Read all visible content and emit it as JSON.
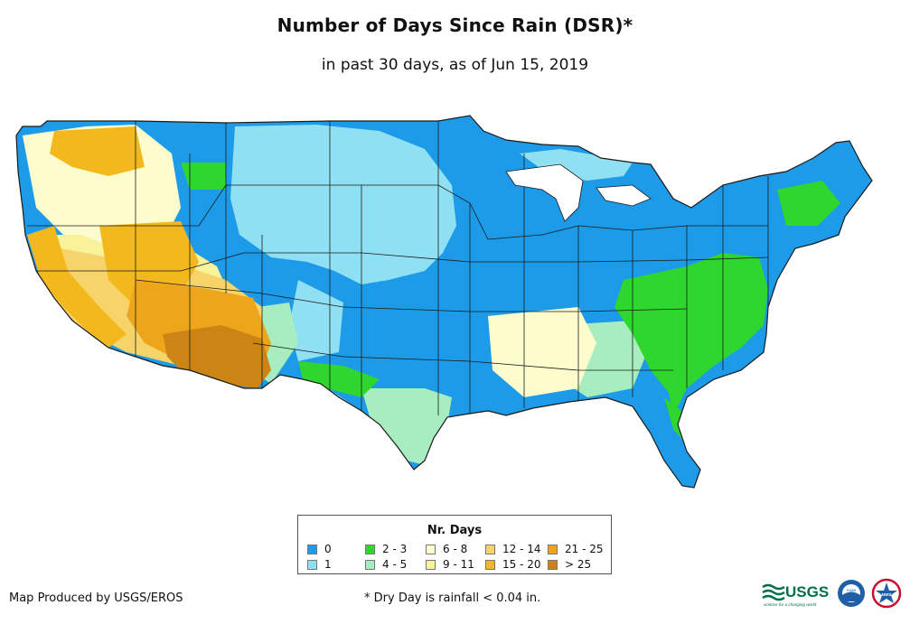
{
  "header": {
    "title": "Number of Days Since Rain (DSR)*",
    "subtitle": "in past 30 days, as of Jun 15, 2019"
  },
  "legend": {
    "title": "Nr. Days",
    "items": [
      {
        "label": "0",
        "color": "#1e9be8"
      },
      {
        "label": "1",
        "color": "#8fe0f2"
      },
      {
        "label": "2 - 3",
        "color": "#2ed62e"
      },
      {
        "label": "4 - 5",
        "color": "#a8edbf"
      },
      {
        "label": "6 - 8",
        "color": "#fdfccc"
      },
      {
        "label": "9 - 11",
        "color": "#f8f29a"
      },
      {
        "label": "12 - 14",
        "color": "#f7d46a"
      },
      {
        "label": "15 - 20",
        "color": "#f2b81e"
      },
      {
        "label": "21 - 25",
        "color": "#eda51c"
      },
      {
        "label": "> 25",
        "color": "#cc8414"
      }
    ]
  },
  "footer": {
    "producer": "Map Produced by USGS/EROS",
    "footnote": "* Dry Day is rainfall < 0.04 in.",
    "usgs_logo_text": "USGS",
    "usgs_tagline": "science for a changing world",
    "noaa_logo_text": "noaa",
    "nws_logo_text": "NWS"
  }
}
